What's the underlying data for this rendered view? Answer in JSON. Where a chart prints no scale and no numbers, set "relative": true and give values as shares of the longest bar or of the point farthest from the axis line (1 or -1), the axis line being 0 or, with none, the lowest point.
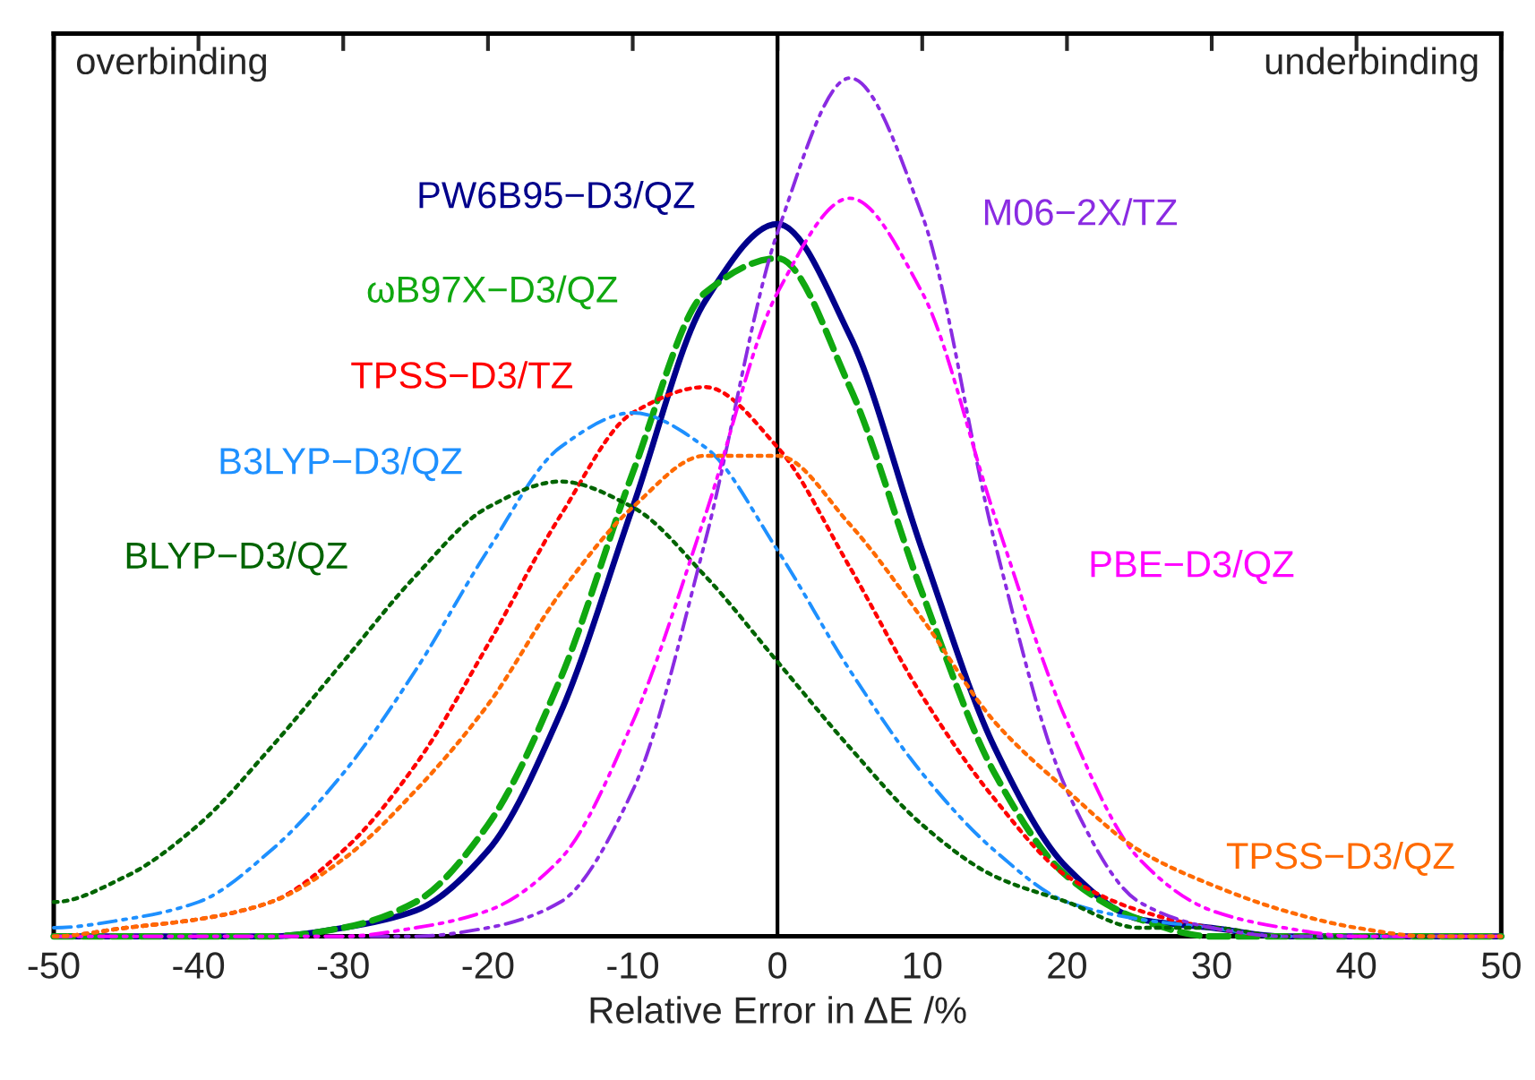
{
  "chart_data": {
    "type": "line",
    "relative": true,
    "xlabel": "Relative Error in ΔE /%",
    "x": [
      -50,
      -45,
      -40,
      -35,
      -30,
      -25,
      -20,
      -15,
      -10,
      -5,
      0,
      5,
      10,
      15,
      20,
      25,
      30,
      35,
      40,
      45,
      50
    ],
    "xlim": [
      -50,
      50
    ],
    "xticks": [
      -50,
      -40,
      -30,
      -20,
      -10,
      0,
      10,
      20,
      30,
      40,
      50
    ],
    "grid": false,
    "legend": false,
    "marker": "none",
    "ref_lines": [
      {
        "axis": "x",
        "value": 0,
        "color": "#000000",
        "line_style": "solid"
      }
    ],
    "annotations": [
      "overbinding",
      "underbinding"
    ],
    "series": [
      {
        "name": "PW6B95−D3/QZ",
        "color": "#00008b",
        "line_style": "solid",
        "values": [
          0,
          0,
          0,
          0,
          0.01,
          0.03,
          0.1,
          0.26,
          0.5,
          0.74,
          0.83,
          0.7,
          0.45,
          0.22,
          0.08,
          0.02,
          0.01,
          0,
          0,
          0,
          0
        ]
      },
      {
        "name": "ωB97X−D3/QZ",
        "color": "#10a810",
        "line_style": "dashed",
        "values": [
          0,
          0,
          0,
          0,
          0.01,
          0.04,
          0.13,
          0.3,
          0.54,
          0.75,
          0.79,
          0.64,
          0.4,
          0.19,
          0.07,
          0.02,
          0,
          0,
          0,
          0,
          0
        ]
      },
      {
        "name": "TPSS−D3/TZ",
        "color": "#ff0000",
        "line_style": "dotted",
        "values": [
          0,
          0.01,
          0.02,
          0.04,
          0.1,
          0.2,
          0.34,
          0.49,
          0.61,
          0.64,
          0.57,
          0.43,
          0.28,
          0.16,
          0.07,
          0.03,
          0.01,
          0,
          0,
          0,
          0
        ]
      },
      {
        "name": "B3LYP−D3/QZ",
        "color": "#1e90ff",
        "line_style": "dashdot",
        "values": [
          0.01,
          0.02,
          0.04,
          0.1,
          0.19,
          0.31,
          0.45,
          0.57,
          0.61,
          0.57,
          0.45,
          0.31,
          0.19,
          0.1,
          0.04,
          0.02,
          0.01,
          0,
          0,
          0,
          0
        ]
      },
      {
        "name": "BLYP−D3/QZ",
        "color": "#006400",
        "line_style": "dotted",
        "values": [
          0.04,
          0.07,
          0.13,
          0.22,
          0.32,
          0.42,
          0.5,
          0.53,
          0.5,
          0.42,
          0.32,
          0.22,
          0.13,
          0.07,
          0.04,
          0.01,
          0.01,
          0,
          0,
          0,
          0
        ]
      },
      {
        "name": "M06−2X/TZ",
        "color": "#8a2be2",
        "line_style": "dashdot",
        "values": [
          0,
          0,
          0,
          0,
          0,
          0,
          0.01,
          0.04,
          0.17,
          0.46,
          0.82,
          1,
          0.84,
          0.46,
          0.17,
          0.04,
          0.01,
          0,
          0,
          0,
          0
        ]
      },
      {
        "name": "PBE−D3/QZ",
        "color": "#ff00ff",
        "line_style": "dashdot",
        "values": [
          0,
          0,
          0,
          0,
          0,
          0.01,
          0.03,
          0.09,
          0.25,
          0.49,
          0.75,
          0.86,
          0.75,
          0.49,
          0.25,
          0.09,
          0.03,
          0.01,
          0,
          0,
          0
        ]
      },
      {
        "name": "TPSS−D3/QZ",
        "color": "#ff6a00",
        "line_style": "dotted",
        "values": [
          0,
          0.01,
          0.02,
          0.04,
          0.09,
          0.17,
          0.27,
          0.4,
          0.5,
          0.56,
          0.56,
          0.48,
          0.37,
          0.25,
          0.17,
          0.1,
          0.06,
          0.03,
          0.01,
          0,
          0
        ]
      }
    ]
  }
}
